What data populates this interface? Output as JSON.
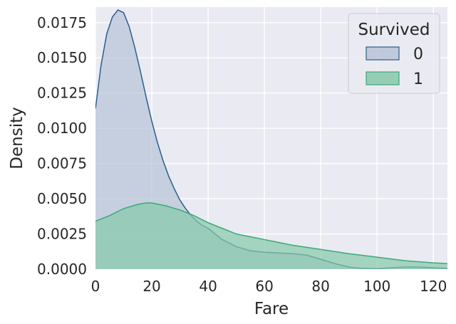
{
  "chart_data": {
    "type": "area",
    "xlabel": "Fare",
    "ylabel": "Density",
    "xlim": [
      0,
      125
    ],
    "ylim": [
      0,
      0.0186
    ],
    "x_ticks": [
      "0",
      "20",
      "40",
      "60",
      "80",
      "100",
      "120"
    ],
    "x_tick_values": [
      0,
      20,
      40,
      60,
      80,
      100,
      120
    ],
    "y_ticks": [
      "0.0000",
      "0.0025",
      "0.0050",
      "0.0075",
      "0.0100",
      "0.0125",
      "0.0150",
      "0.0175"
    ],
    "y_tick_values": [
      0,
      0.0025,
      0.005,
      0.0075,
      0.01,
      0.0125,
      0.015,
      0.0175
    ],
    "grid": true,
    "legend": {
      "title": "Survived",
      "position": "top-right",
      "entries": [
        "0",
        "1"
      ]
    },
    "series": [
      {
        "name": "0",
        "line_color": "#2a5f8a",
        "fill_color": "#b7c3d7",
        "x": [
          0,
          2,
          4,
          6,
          8,
          10,
          12,
          14,
          16,
          18,
          20,
          22,
          24,
          26,
          28,
          30,
          32,
          34,
          36,
          38,
          40,
          45,
          50,
          55,
          60,
          65,
          70,
          75,
          80,
          85,
          90,
          95,
          100,
          105,
          110,
          115,
          120,
          125
        ],
        "values": [
          0.0114,
          0.0145,
          0.0167,
          0.0179,
          0.0184,
          0.0182,
          0.0172,
          0.0157,
          0.014,
          0.0122,
          0.0105,
          0.009,
          0.0077,
          0.0066,
          0.0057,
          0.0049,
          0.0043,
          0.0038,
          0.0034,
          0.0031,
          0.0029,
          0.0021,
          0.0016,
          0.0013,
          0.0012,
          0.00115,
          0.0011,
          0.001,
          0.0007,
          0.0004,
          0.00015,
          5e-05,
          3e-05,
          0.0001,
          0.00015,
          0.00015,
          0.0001,
          5e-05
        ]
      },
      {
        "name": "1",
        "line_color": "#3aaa78",
        "fill_color": "#86c9a9",
        "x": [
          0,
          5,
          10,
          15,
          18,
          20,
          25,
          30,
          35,
          40,
          45,
          50,
          55,
          60,
          70,
          80,
          90,
          100,
          110,
          120,
          125
        ],
        "values": [
          0.0034,
          0.0038,
          0.0043,
          0.0046,
          0.0047,
          0.0047,
          0.0045,
          0.0042,
          0.0038,
          0.0033,
          0.0029,
          0.0025,
          0.0023,
          0.0021,
          0.0017,
          0.0014,
          0.0011,
          0.00085,
          0.0006,
          0.00045,
          0.0004
        ]
      }
    ]
  },
  "colors": {
    "plot_background": "#eaeaf2",
    "grid": "#ffffff",
    "text": "#262626"
  }
}
